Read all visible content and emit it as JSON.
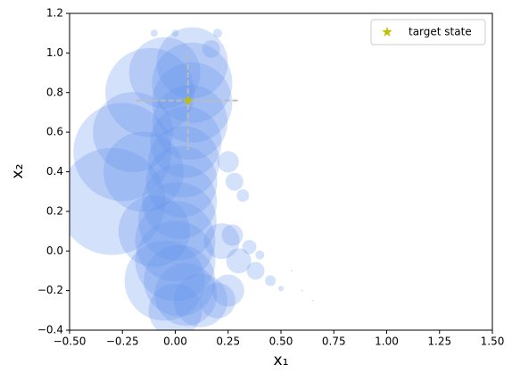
{
  "chart_data": {
    "type": "scatter",
    "x_label": "x₁",
    "y_label": "x₂",
    "xlim": [
      -0.5,
      1.5
    ],
    "xticks": [
      {
        "value": -0.5,
        "label": "−0.50"
      },
      {
        "value": -0.25,
        "label": "−0.25"
      },
      {
        "value": 0,
        "label": "0.00"
      },
      0.25,
      {
        "value": 0.5,
        "label": "0.50"
      },
      0.75,
      {
        "value": 1,
        "label": "1.00"
      },
      1.25,
      {
        "value": 1.5,
        "label": "1.50"
      }
    ],
    "ylim": [
      -0.4,
      1.2
    ],
    "yticks": [
      {
        "value": -0.4,
        "label": "−0.4"
      },
      {
        "value": -0.2,
        "label": "−0.2"
      },
      {
        "value": 0,
        "label": "0.0"
      },
      0.2,
      0.4,
      0.6,
      0.8,
      {
        "value": 1,
        "label": "1.0"
      },
      1.2
    ],
    "grid": false,
    "legend": "upper right",
    "series": [
      {
        "color": "#6495ed",
        "x": [
          0.08,
          0.08,
          0.08,
          0.07,
          0.05,
          0.04,
          0.03,
          0.02,
          0.01,
          0.0,
          0.0,
          0.02,
          0.05,
          -0.3,
          -0.25,
          -0.2,
          -0.12,
          -0.05,
          -0.15,
          -0.1,
          -0.05,
          0.0,
          0.12,
          0.2,
          0.25,
          0.25,
          0.28,
          0.32,
          0.22,
          0.3,
          0.38,
          0.45,
          0.5,
          0.27,
          0.35,
          0.4,
          0.17,
          0.2,
          0.0,
          -0.1,
          0.55,
          0.6,
          0.65
        ],
        "values": [
          0.95,
          0.85,
          0.75,
          0.65,
          0.55,
          0.45,
          0.35,
          0.25,
          0.15,
          0.05,
          -0.05,
          -0.15,
          -0.22,
          0.25,
          0.5,
          0.6,
          0.8,
          0.9,
          0.4,
          0.1,
          -0.15,
          -0.3,
          -0.25,
          -0.25,
          -0.2,
          0.45,
          0.35,
          0.28,
          0.05,
          -0.05,
          -0.1,
          -0.15,
          -0.19,
          0.08,
          0.02,
          -0.02,
          1.02,
          1.1,
          1.1,
          1.1,
          -0.1,
          -0.2,
          -0.25
        ],
        "sizes": [
          40,
          45,
          45,
          42,
          40,
          40,
          40,
          42,
          44,
          45,
          45,
          40,
          35,
          60,
          55,
          45,
          50,
          40,
          45,
          40,
          45,
          30,
          30,
          20,
          18,
          12,
          10,
          7,
          20,
          14,
          10,
          6,
          3,
          12,
          8,
          5,
          10,
          5,
          4,
          4,
          1,
          1,
          1
        ]
      },
      {
        "name": "target state",
        "color": "#bfbf00",
        "error_color": "#bbbbbb",
        "x": [
          0.06
        ],
        "values": [
          0.76
        ],
        "xerr": [
          0.245
        ],
        "yerr": [
          0.25
        ]
      }
    ]
  }
}
